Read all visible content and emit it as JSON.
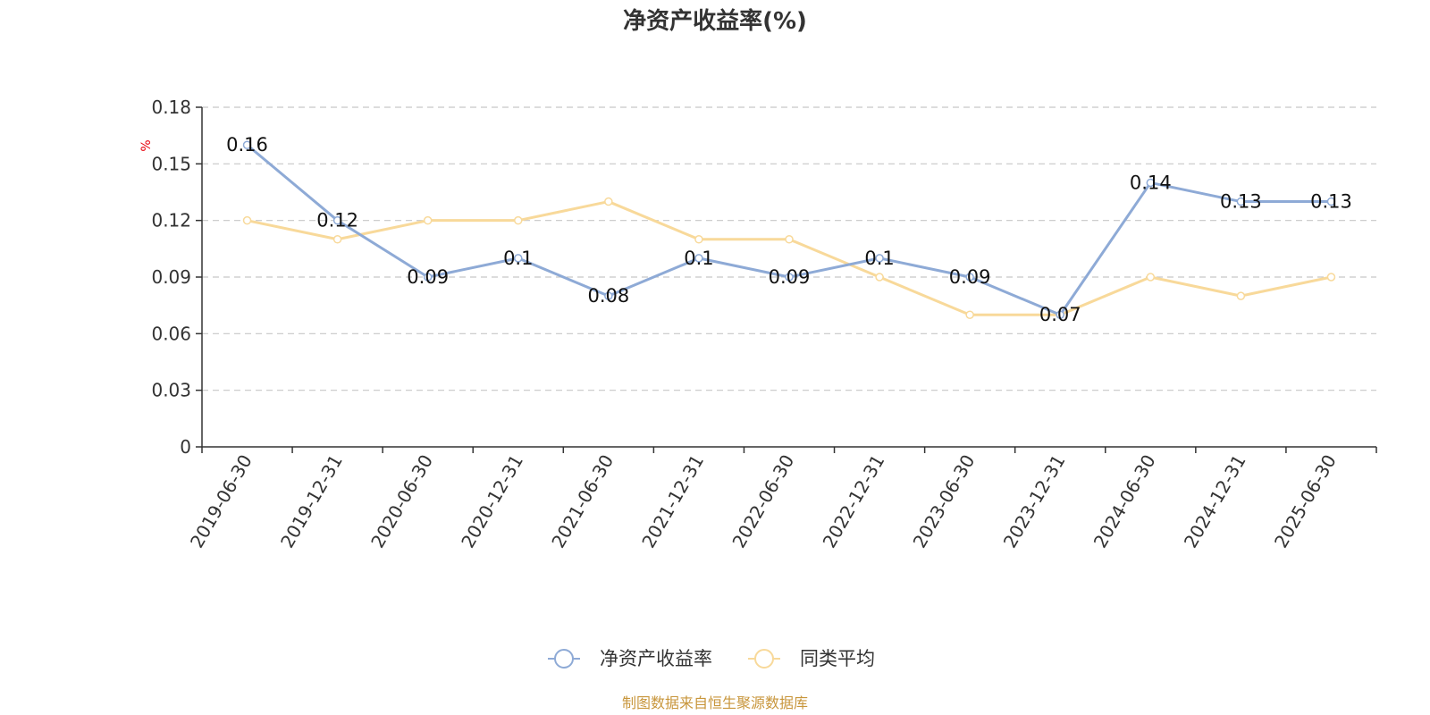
{
  "chart_data": {
    "type": "line",
    "title": "净资产收益率(%)",
    "ylabel": "%",
    "ylim": [
      0,
      0.18
    ],
    "yticks": [
      "0",
      "0.03",
      "0.06",
      "0.09",
      "0.12",
      "0.15",
      "0.18"
    ],
    "grid": true,
    "legend_position": "bottom-center",
    "categories": [
      "2019-06-30",
      "2019-12-31",
      "2020-06-30",
      "2020-12-31",
      "2021-06-30",
      "2021-12-31",
      "2022-06-30",
      "2022-12-31",
      "2023-06-30",
      "2023-12-31",
      "2024-06-30",
      "2024-12-31",
      "2025-06-30"
    ],
    "series": [
      {
        "name": "净资产收益率",
        "color": "#8eaad6",
        "values": [
          0.16,
          0.12,
          0.09,
          0.1,
          0.08,
          0.1,
          0.09,
          0.1,
          0.09,
          0.07,
          0.14,
          0.13,
          0.13
        ],
        "labels": [
          "0.16",
          "0.12",
          "0.09",
          "0.1",
          "0.08",
          "0.1",
          "0.09",
          "0.1",
          "0.09",
          "0.07",
          "0.14",
          "0.13",
          "0.13"
        ]
      },
      {
        "name": "同类平均",
        "color": "#f8d99a",
        "values": [
          0.12,
          0.11,
          0.12,
          0.12,
          0.13,
          0.11,
          0.11,
          0.09,
          0.07,
          0.07,
          0.09,
          0.08,
          0.09
        ]
      }
    ],
    "source": "制图数据来自恒生聚源数据库"
  }
}
